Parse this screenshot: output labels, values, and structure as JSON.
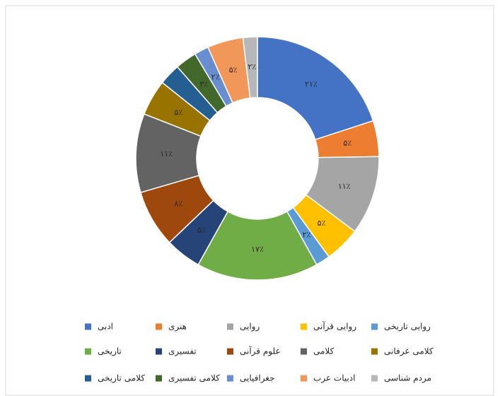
{
  "chart_data": {
    "type": "donut",
    "categories": [
      "ادبی",
      "هنری",
      "روایی",
      "روایی قرآنی",
      "روایی تاریخی",
      "تاریخی",
      "تفسیری",
      "علوم قرآنی",
      "کلامی",
      "کلامی عرفانی",
      "کلامی تاریخی",
      "کلامی تفسیری",
      "جغرافیایی",
      "ادبیات عرب",
      "مردم شناسی"
    ],
    "values": [
      21,
      5,
      11,
      5,
      2,
      17,
      5,
      8,
      11,
      5,
      3,
      3,
      2,
      5,
      2
    ],
    "value_labels": [
      "۲۱٪",
      "۵٪",
      "۱۱٪",
      "۵٪",
      "۲٪",
      "۱۷٪",
      "۵٪",
      "۸٪",
      "۱۱٪",
      "۵٪",
      null,
      "۳٪",
      "۲٪",
      "۵٪",
      "۲٪"
    ],
    "colors": [
      "#4472c4",
      "#ed7d31",
      "#a5a5a5",
      "#ffc000",
      "#5b9bd5",
      "#70ad47",
      "#264478",
      "#9e480e",
      "#636363",
      "#997300",
      "#255e91",
      "#43682b",
      "#698ed0",
      "#f1975a",
      "#b7b7b7"
    ],
    "legend": "bottom"
  }
}
